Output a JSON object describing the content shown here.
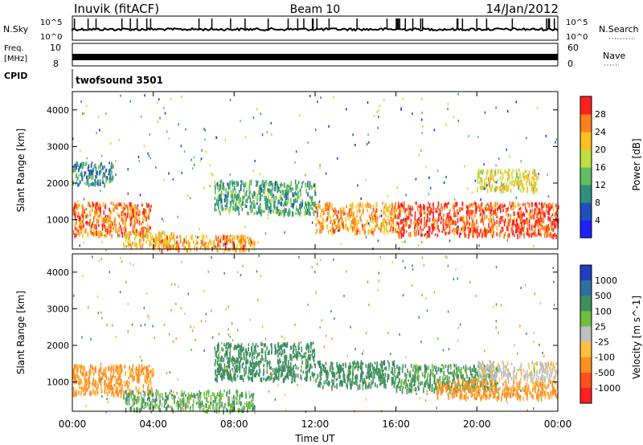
{
  "header": {
    "station": "Inuvik (fitACF)",
    "beam": "Beam 10",
    "date": "14/Jan/2012"
  },
  "noise_panel": {
    "left_label": "N.Sky",
    "right_label": "N.Search",
    "left_ticks": [
      "10^5",
      "10^0"
    ],
    "right_ticks": [
      "10^5",
      "10^0"
    ]
  },
  "freq_panel": {
    "left_label_1": "Freq.",
    "left_label_2": "[MHz]",
    "right_label": "Nave",
    "left_ticks": [
      "10",
      "8"
    ],
    "right_ticks": [
      "60",
      "0"
    ]
  },
  "cpid": {
    "label": "CPID",
    "value": "twofsound 3501"
  },
  "chart_data": [
    {
      "type": "heatmap",
      "name": "power",
      "ylabel": "Slant Range [km]",
      "yticks": [
        "1000",
        "2000",
        "3000",
        "4000"
      ],
      "ylim": [
        200,
        4500
      ],
      "xlim": [
        0,
        24
      ],
      "colorbar": {
        "label": "Power [dB]",
        "ticks": [
          "4",
          "8",
          "12",
          "16",
          "20",
          "24",
          "28"
        ],
        "colors": [
          "#1f1fff",
          "#1f4fbf",
          "#2f8f7f",
          "#5fbf5f",
          "#bfdf3f",
          "#ffbf1f",
          "#ff7f1f",
          "#ff1f1f"
        ]
      },
      "bands": [
        {
          "x0": 0.0,
          "x1": 3.9,
          "y0": 600,
          "y1": 1500,
          "value": 26
        },
        {
          "x0": 2.5,
          "x1": 5.0,
          "y0": 300,
          "y1": 700,
          "value": 22
        },
        {
          "x0": 3.8,
          "x1": 9.0,
          "y0": 200,
          "y1": 600,
          "value": 24
        },
        {
          "x0": 7.0,
          "x1": 12.0,
          "y0": 1200,
          "y1": 2100,
          "value": 12
        },
        {
          "x0": 12.0,
          "x1": 16.0,
          "y0": 700,
          "y1": 1500,
          "value": 24
        },
        {
          "x0": 16.0,
          "x1": 24.0,
          "y0": 600,
          "y1": 1500,
          "value": 28
        },
        {
          "x0": 20.0,
          "x1": 23.0,
          "y0": 1800,
          "y1": 2400,
          "value": 20
        },
        {
          "x0": 0.0,
          "x1": 2.0,
          "y0": 2000,
          "y1": 2600,
          "value": 10
        }
      ]
    },
    {
      "type": "heatmap",
      "name": "velocity",
      "ylabel": "Slant Range [km]",
      "yticks": [
        "1000",
        "2000",
        "3000",
        "4000"
      ],
      "ylim": [
        200,
        4500
      ],
      "xlim": [
        0,
        24
      ],
      "colorbar": {
        "label": "Velocity [m s^-1]",
        "ticks": [
          "1000",
          "500",
          "100",
          "25",
          "-25",
          "-100",
          "-500",
          "-1000"
        ],
        "colors": [
          "#1f3fbf",
          "#2f6f9f",
          "#3f8f5f",
          "#6fbf3f",
          "#bfbfbf",
          "#ffbf3f",
          "#ff8f1f",
          "#ff4f1f",
          "#ff1f1f"
        ]
      },
      "bands": [
        {
          "x0": 0.0,
          "x1": 4.0,
          "y0": 700,
          "y1": 1500,
          "value": -200
        },
        {
          "x0": 2.5,
          "x1": 9.0,
          "y0": 250,
          "y1": 800,
          "value": 80
        },
        {
          "x0": 7.0,
          "x1": 12.0,
          "y0": 1100,
          "y1": 2100,
          "value": 300
        },
        {
          "x0": 12.0,
          "x1": 16.0,
          "y0": 900,
          "y1": 1600,
          "value": 300
        },
        {
          "x0": 16.0,
          "x1": 21.0,
          "y0": 800,
          "y1": 1500,
          "value": 150
        },
        {
          "x0": 18.0,
          "x1": 24.0,
          "y0": 600,
          "y1": 1100,
          "value": -200
        },
        {
          "x0": 20.0,
          "x1": 24.0,
          "y0": 1100,
          "y1": 1600,
          "value": -10
        }
      ]
    }
  ],
  "xaxis": {
    "label": "Time UT",
    "ticks": [
      "00:00",
      "04:00",
      "08:00",
      "12:00",
      "16:00",
      "20:00",
      "00:00"
    ]
  }
}
